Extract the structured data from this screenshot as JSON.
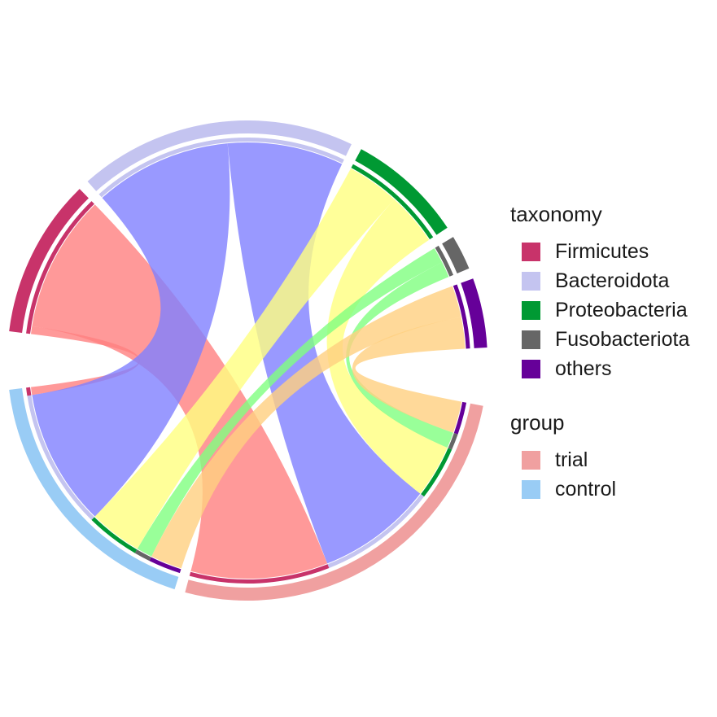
{
  "chart_data": {
    "type": "chord",
    "taxonomy_legend": {
      "title": "taxonomy",
      "items": [
        {
          "name": "Firmicutes",
          "color": "#c8336a"
        },
        {
          "name": "Bacteroidota",
          "color": "#c4c4f0"
        },
        {
          "name": "Proteobacteria",
          "color": "#009933"
        },
        {
          "name": "Fusobacteriota",
          "color": "#666666"
        },
        {
          "name": "others",
          "color": "#660099"
        }
      ]
    },
    "group_legend": {
      "title": "group",
      "items": [
        {
          "name": "trial",
          "color": "#f0a0a0"
        },
        {
          "name": "control",
          "color": "#99ccf5"
        }
      ]
    },
    "links": [
      {
        "from": "Firmicutes",
        "to": "control",
        "value": 1.5,
        "color": "#ff8080"
      },
      {
        "from": "Firmicutes",
        "to": "trial",
        "value": 26,
        "color": "#ff8080"
      },
      {
        "from": "Bacteroidota",
        "to": "control",
        "value": 26,
        "color": "#8080ff"
      },
      {
        "from": "Bacteroidota",
        "to": "trial",
        "value": 22,
        "color": "#8080ff"
      },
      {
        "from": "Proteobacteria",
        "to": "control",
        "value": 10,
        "color": "#ffff80"
      },
      {
        "from": "Proteobacteria",
        "to": "trial",
        "value": 10,
        "color": "#ffff80"
      },
      {
        "from": "Fusobacteriota",
        "to": "control",
        "value": 3,
        "color": "#80ff80"
      },
      {
        "from": "Fusobacteriota",
        "to": "trial",
        "value": 3,
        "color": "#80ff80"
      },
      {
        "from": "others",
        "to": "control",
        "value": 6,
        "color": "#ffd080"
      },
      {
        "from": "others",
        "to": "trial",
        "value": 6,
        "color": "#ffd080"
      }
    ]
  }
}
